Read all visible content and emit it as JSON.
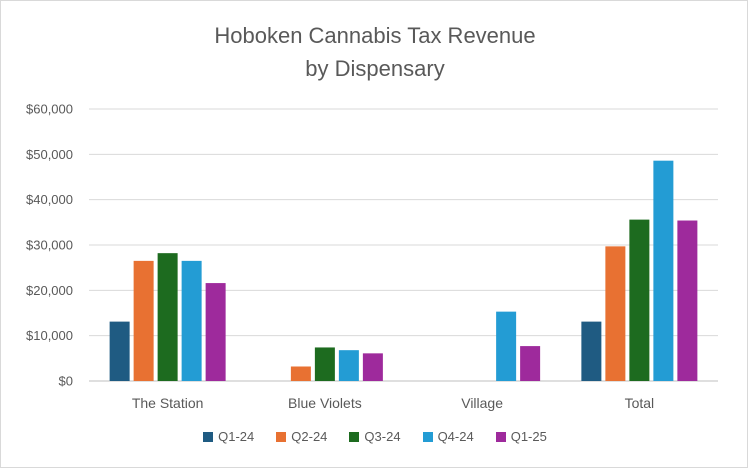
{
  "chart_data": {
    "type": "bar",
    "title": "Hoboken Cannabis Tax Revenue by Dispensary",
    "title_lines": [
      "Hoboken Cannabis Tax Revenue",
      "by Dispensary"
    ],
    "categories": [
      "The Station",
      "Blue Violets",
      "Village",
      "Total"
    ],
    "y_ticks": [
      "$0",
      "$10,000",
      "$20,000",
      "$30,000",
      "$40,000",
      "$50,000",
      "$60,000"
    ],
    "ylim": [
      0,
      60000
    ],
    "grid": true,
    "legend_position": "bottom",
    "series": [
      {
        "name": "Q1-24",
        "color": "#1f5b82",
        "values": [
          13100,
          0,
          0,
          13100
        ]
      },
      {
        "name": "Q2-24",
        "color": "#e87132",
        "values": [
          26500,
          3200,
          0,
          29700
        ]
      },
      {
        "name": "Q3-24",
        "color": "#1d6b1f",
        "values": [
          28200,
          7400,
          0,
          35600
        ]
      },
      {
        "name": "Q4-24",
        "color": "#239cd4",
        "values": [
          26500,
          6800,
          15300,
          48600
        ]
      },
      {
        "name": "Q1-25",
        "color": "#9e2a9c",
        "values": [
          21600,
          6100,
          7700,
          35400
        ]
      }
    ]
  }
}
